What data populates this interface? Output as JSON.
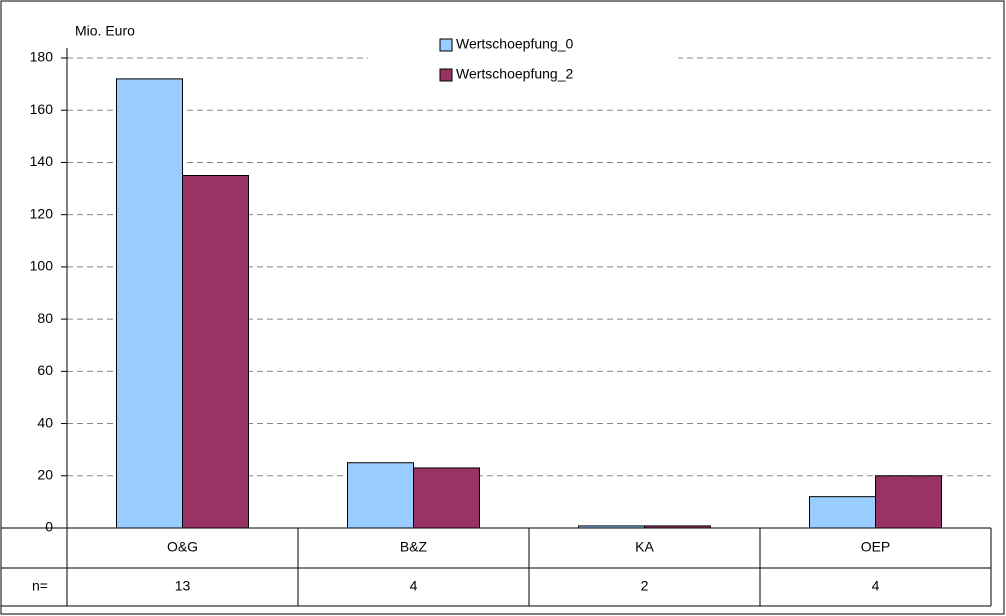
{
  "chart_data": {
    "type": "bar",
    "y_label": "Mio.  Euro",
    "categories": [
      "O&G",
      "B&Z",
      "KA",
      "OEP"
    ],
    "series": [
      {
        "name": "Wertschoepfung_0",
        "color": "#99ccff",
        "values": [
          172,
          25,
          0.8,
          12
        ]
      },
      {
        "name": "Wertschoepfung_2",
        "color": "#993366",
        "values": [
          135,
          23,
          0.8,
          20
        ]
      }
    ],
    "ylim": [
      0,
      180
    ],
    "yticks": [
      0,
      20,
      40,
      60,
      80,
      100,
      120,
      140,
      160,
      180
    ],
    "grid": true,
    "table_row_label": "n=",
    "n_values": [
      13,
      4,
      2,
      4
    ]
  }
}
